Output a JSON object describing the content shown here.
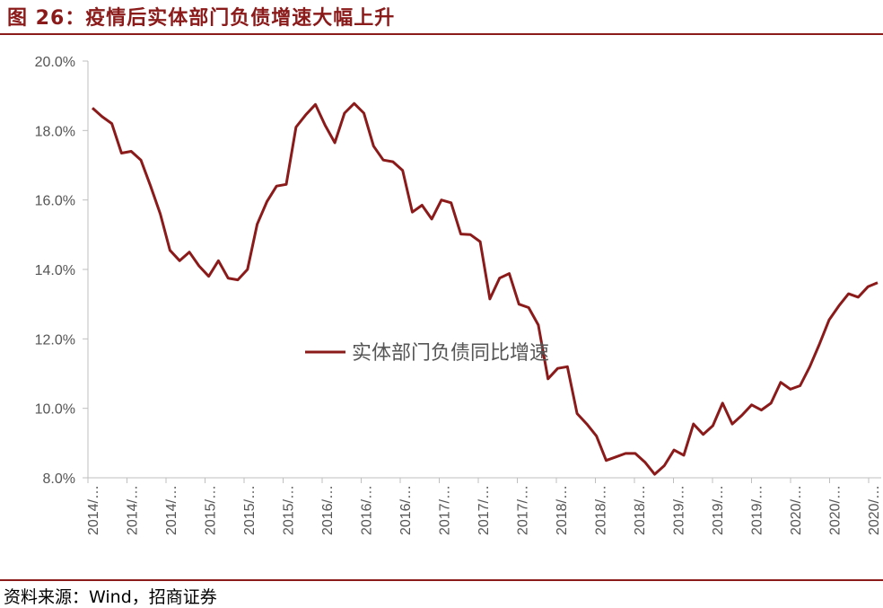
{
  "header": {
    "title": "图 26：疫情后实体部门负债增速大幅上升"
  },
  "footer": {
    "source": "资料来源：Wind，招商证券"
  },
  "colors": {
    "accent": "#8b1a1a",
    "line": "#8b1a1a"
  },
  "chart_data": {
    "type": "line",
    "title": "",
    "xlabel": "",
    "ylabel": "",
    "ylim": [
      8.0,
      20.0
    ],
    "yticks": [
      "8.0%",
      "10.0%",
      "12.0%",
      "14.0%",
      "16.0%",
      "18.0%",
      "20.0%"
    ],
    "ytick_values": [
      8,
      10,
      12,
      14,
      16,
      18,
      20
    ],
    "x_tick_labels": [
      "2014/…",
      "2014/…",
      "2014/…",
      "2015/…",
      "2015/…",
      "2015/…",
      "2016/…",
      "2016/…",
      "2016/…",
      "2017/…",
      "2017/…",
      "2017/…",
      "2018/…",
      "2018/…",
      "2018/…",
      "2019/…",
      "2019/…",
      "2019/…",
      "2020/…",
      "2020/…",
      "2020/…"
    ],
    "legend": {
      "label": "实体部门负债同比增速",
      "placement": "center"
    },
    "grid": false,
    "series": [
      {
        "name": "实体部门负债同比增速",
        "values": [
          18.65,
          18.4,
          18.2,
          17.35,
          17.4,
          17.15,
          16.4,
          15.6,
          14.55,
          14.25,
          14.5,
          14.1,
          13.8,
          14.25,
          13.75,
          13.7,
          14.0,
          15.3,
          15.95,
          16.4,
          16.45,
          18.1,
          18.45,
          18.75,
          18.15,
          17.65,
          18.5,
          18.78,
          18.5,
          17.55,
          17.15,
          17.1,
          16.85,
          15.65,
          15.85,
          15.45,
          16.0,
          15.92,
          15.02,
          15.0,
          14.8,
          13.15,
          13.75,
          13.88,
          13.0,
          12.9,
          12.4,
          10.85,
          11.15,
          11.2,
          9.85,
          9.55,
          9.2,
          8.5,
          8.6,
          8.7,
          8.7,
          8.45,
          8.1,
          8.35,
          8.8,
          8.65,
          9.55,
          9.25,
          9.5,
          10.15,
          9.55,
          9.8,
          10.1,
          9.95,
          10.15,
          10.75,
          10.55,
          10.65,
          11.2,
          11.85,
          12.55,
          12.95,
          13.3,
          13.2,
          13.5,
          13.62
        ]
      }
    ]
  }
}
